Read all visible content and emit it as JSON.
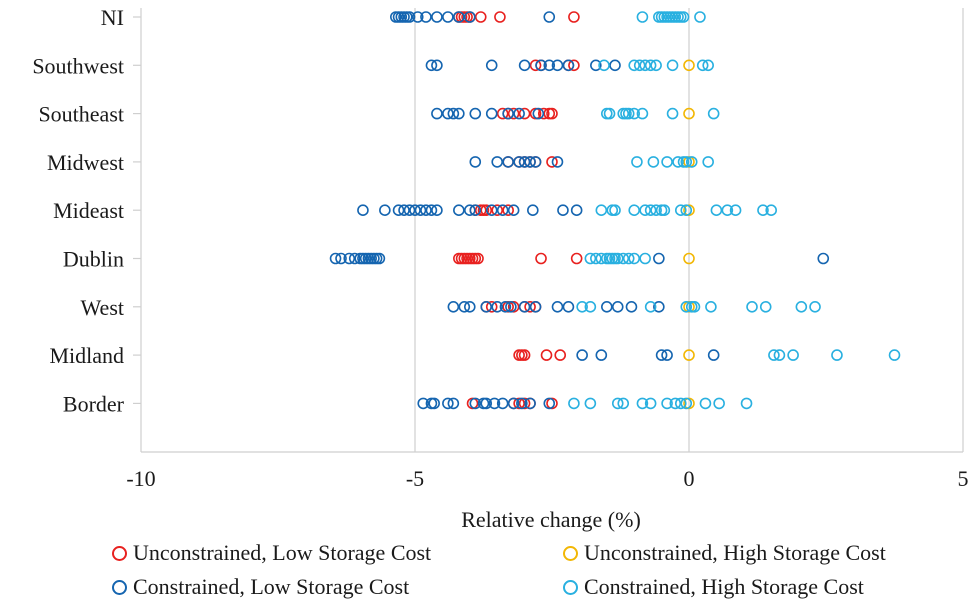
{
  "chart_data": {
    "type": "scatter",
    "xlabel": "Relative change (%)",
    "xlim": [
      -10,
      5
    ],
    "xticks": [
      "-10",
      "-5",
      "0",
      "5"
    ],
    "xtick_values": [
      -10,
      -5,
      0,
      5
    ],
    "categories": [
      "NI",
      "Southwest",
      "Southeast",
      "Midwest",
      "Mideast",
      "Dublin",
      "West",
      "Midland",
      "Border"
    ],
    "grid": "vertical",
    "legend_position": "bottom",
    "series": [
      {
        "name": "Unconstrained, Low Storage Cost",
        "color": "#e8211f",
        "points": {
          "NI": [
            -4.2,
            -4.15,
            -4.1,
            -4.05,
            -4.0,
            -3.8,
            -3.45,
            -2.1
          ],
          "Southwest": [
            -2.8,
            -2.7,
            -2.2,
            -2.1
          ],
          "Southeast": [
            -3.4,
            -3.3,
            -3.2,
            -3.0,
            -2.8,
            -2.65,
            -2.55,
            -2.5
          ],
          "Midwest": [
            -3.3,
            -3.1,
            -3.0,
            -2.9,
            -2.8,
            -2.5
          ],
          "Mideast": [
            -3.9,
            -3.8,
            -3.75,
            -3.7,
            -3.5,
            -3.3
          ],
          "Dublin": [
            -4.2,
            -4.15,
            -4.1,
            -4.05,
            -4.0,
            -3.95,
            -3.9,
            -3.85,
            -2.7,
            -2.05
          ],
          "West": [
            -3.7,
            -3.6,
            -3.3,
            -3.2,
            -3.0,
            -2.9,
            -2.8
          ],
          "Midland": [
            -3.1,
            -3.05,
            -3.0,
            -2.6,
            -2.35
          ],
          "Border": [
            -3.95,
            -3.2,
            -3.1,
            -3.0,
            -2.9,
            -2.5
          ]
        }
      },
      {
        "name": "Unconstrained, High Storage Cost",
        "color": "#f2b705",
        "points": {
          "NI": [],
          "Southwest": [
            0.0
          ],
          "Southeast": [
            0.0
          ],
          "Midwest": [
            0.0
          ],
          "Mideast": [
            0.0
          ],
          "Dublin": [
            0.0
          ],
          "West": [
            0.0
          ],
          "Midland": [
            0.0
          ],
          "Border": [
            0.0
          ]
        }
      },
      {
        "name": "Constrained, Low Storage Cost",
        "color": "#1565b0",
        "points": {
          "NI": [
            -5.35,
            -5.3,
            -5.25,
            -5.2,
            -5.15,
            -5.1,
            -4.95,
            -4.8,
            -4.6,
            -4.4,
            -4.2,
            -4.0,
            -2.55
          ],
          "Southwest": [
            -4.7,
            -4.6,
            -3.6,
            -3.0,
            -2.7,
            -2.55,
            -2.4,
            -2.2,
            -1.7,
            -1.35
          ],
          "Southeast": [
            -4.6,
            -4.4,
            -4.3,
            -4.2,
            -3.9,
            -3.6,
            -3.3,
            -3.1,
            -2.75
          ],
          "Midwest": [
            -3.9,
            -3.5,
            -3.3,
            -3.1,
            -3.0,
            -2.9,
            -2.8,
            -2.4
          ],
          "Mideast": [
            -5.95,
            -5.55,
            -5.3,
            -5.2,
            -5.1,
            -5.0,
            -4.9,
            -4.8,
            -4.7,
            -4.6,
            -4.2,
            -4.0,
            -3.9,
            -3.6,
            -3.4,
            -3.2,
            -2.85,
            -2.3,
            -2.05
          ],
          "Dublin": [
            -6.45,
            -6.35,
            -6.2,
            -6.1,
            -6.0,
            -5.95,
            -5.9,
            -5.85,
            -5.8,
            -5.75,
            -5.7,
            -5.65,
            -0.55,
            2.45
          ],
          "West": [
            -4.3,
            -4.1,
            -4.0,
            -3.7,
            -3.5,
            -3.35,
            -3.25,
            -3.0,
            -2.8,
            -2.4,
            -2.2,
            -1.5,
            -1.3,
            -1.05,
            -0.55
          ],
          "Midland": [
            -1.95,
            -1.6,
            -0.5,
            -0.4,
            0.45
          ],
          "Border": [
            -4.85,
            -4.7,
            -4.65,
            -4.4,
            -4.3,
            -3.9,
            -3.75,
            -3.7,
            -3.55,
            -3.4,
            -3.2,
            -3.05,
            -2.9,
            -2.55
          ]
        }
      },
      {
        "name": "Constrained, High Storage Cost",
        "color": "#29b0e0",
        "points": {
          "NI": [
            -0.85,
            -0.55,
            -0.5,
            -0.45,
            -0.4,
            -0.35,
            -0.3,
            -0.25,
            -0.2,
            -0.15,
            -0.1,
            0.2
          ],
          "Southwest": [
            -1.55,
            -1.0,
            -0.9,
            -0.8,
            -0.7,
            -0.6,
            -0.3,
            0.25,
            0.35
          ],
          "Southeast": [
            -1.5,
            -1.45,
            -1.2,
            -1.15,
            -1.1,
            -1.0,
            -0.85,
            -0.3,
            0.45
          ],
          "Midwest": [
            -0.95,
            -0.65,
            -0.4,
            -0.2,
            -0.1,
            -0.05,
            0.05,
            0.35
          ],
          "Mideast": [
            -1.6,
            -1.4,
            -1.35,
            -1.0,
            -0.8,
            -0.7,
            -0.6,
            -0.5,
            -0.45,
            -0.15,
            -0.05,
            0.5,
            0.7,
            0.85,
            1.35,
            1.5
          ],
          "Dublin": [
            -1.8,
            -1.7,
            -1.6,
            -1.5,
            -1.45,
            -1.4,
            -1.35,
            -1.3,
            -1.2,
            -1.1,
            -1.0,
            -0.8
          ],
          "West": [
            -1.95,
            -1.8,
            -0.7,
            -0.05,
            0.05,
            0.1,
            0.4,
            1.15,
            1.4,
            2.05,
            2.3
          ],
          "Midland": [
            1.55,
            1.65,
            1.9,
            2.7,
            3.75
          ],
          "Border": [
            -2.1,
            -1.8,
            -1.3,
            -1.2,
            -0.85,
            -0.7,
            -0.4,
            -0.25,
            -0.15,
            -0.05,
            0.3,
            0.55,
            1.05
          ]
        }
      }
    ]
  }
}
